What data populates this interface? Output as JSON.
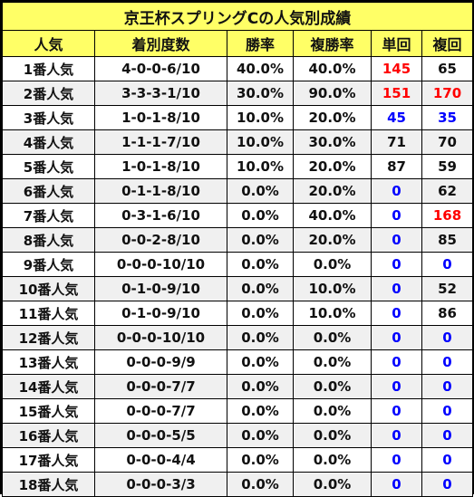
{
  "title": "京王杯スプリングCの人気別成績",
  "columns": [
    "人気",
    "着別度数",
    "勝率",
    "複勝率",
    "単回",
    "複回"
  ],
  "colors": {
    "header_bg": "#ffff66",
    "stripe_bg": "#f0f0f0",
    "high_return": "#ff0000",
    "low_return": "#0000ff",
    "normal_text": "#111111"
  },
  "rows": [
    {
      "pop": "1番人気",
      "record": "4-0-0-6/10",
      "win": "40.0%",
      "place": "40.0%",
      "tan": "145",
      "tan_color": "red",
      "fuku": "65",
      "fuku_color": "black"
    },
    {
      "pop": "2番人気",
      "record": "3-3-3-1/10",
      "win": "30.0%",
      "place": "90.0%",
      "tan": "151",
      "tan_color": "red",
      "fuku": "170",
      "fuku_color": "red"
    },
    {
      "pop": "3番人気",
      "record": "1-0-1-8/10",
      "win": "10.0%",
      "place": "20.0%",
      "tan": "45",
      "tan_color": "blue",
      "fuku": "35",
      "fuku_color": "blue"
    },
    {
      "pop": "4番人気",
      "record": "1-1-1-7/10",
      "win": "10.0%",
      "place": "30.0%",
      "tan": "71",
      "tan_color": "black",
      "fuku": "70",
      "fuku_color": "black"
    },
    {
      "pop": "5番人気",
      "record": "1-0-1-8/10",
      "win": "10.0%",
      "place": "20.0%",
      "tan": "87",
      "tan_color": "black",
      "fuku": "59",
      "fuku_color": "black"
    },
    {
      "pop": "6番人気",
      "record": "0-1-1-8/10",
      "win": "0.0%",
      "place": "20.0%",
      "tan": "0",
      "tan_color": "blue",
      "fuku": "62",
      "fuku_color": "black"
    },
    {
      "pop": "7番人気",
      "record": "0-3-1-6/10",
      "win": "0.0%",
      "place": "40.0%",
      "tan": "0",
      "tan_color": "blue",
      "fuku": "168",
      "fuku_color": "red"
    },
    {
      "pop": "8番人気",
      "record": "0-0-2-8/10",
      "win": "0.0%",
      "place": "20.0%",
      "tan": "0",
      "tan_color": "blue",
      "fuku": "85",
      "fuku_color": "black"
    },
    {
      "pop": "9番人気",
      "record": "0-0-0-10/10",
      "win": "0.0%",
      "place": "0.0%",
      "tan": "0",
      "tan_color": "blue",
      "fuku": "0",
      "fuku_color": "blue"
    },
    {
      "pop": "10番人気",
      "record": "0-1-0-9/10",
      "win": "0.0%",
      "place": "10.0%",
      "tan": "0",
      "tan_color": "blue",
      "fuku": "52",
      "fuku_color": "black"
    },
    {
      "pop": "11番人気",
      "record": "0-1-0-9/10",
      "win": "0.0%",
      "place": "10.0%",
      "tan": "0",
      "tan_color": "blue",
      "fuku": "86",
      "fuku_color": "black"
    },
    {
      "pop": "12番人気",
      "record": "0-0-0-10/10",
      "win": "0.0%",
      "place": "0.0%",
      "tan": "0",
      "tan_color": "blue",
      "fuku": "0",
      "fuku_color": "blue"
    },
    {
      "pop": "13番人気",
      "record": "0-0-0-9/9",
      "win": "0.0%",
      "place": "0.0%",
      "tan": "0",
      "tan_color": "blue",
      "fuku": "0",
      "fuku_color": "blue"
    },
    {
      "pop": "14番人気",
      "record": "0-0-0-7/7",
      "win": "0.0%",
      "place": "0.0%",
      "tan": "0",
      "tan_color": "blue",
      "fuku": "0",
      "fuku_color": "blue"
    },
    {
      "pop": "15番人気",
      "record": "0-0-0-7/7",
      "win": "0.0%",
      "place": "0.0%",
      "tan": "0",
      "tan_color": "blue",
      "fuku": "0",
      "fuku_color": "blue"
    },
    {
      "pop": "16番人気",
      "record": "0-0-0-5/5",
      "win": "0.0%",
      "place": "0.0%",
      "tan": "0",
      "tan_color": "blue",
      "fuku": "0",
      "fuku_color": "blue"
    },
    {
      "pop": "17番人気",
      "record": "0-0-0-4/4",
      "win": "0.0%",
      "place": "0.0%",
      "tan": "0",
      "tan_color": "blue",
      "fuku": "0",
      "fuku_color": "blue"
    },
    {
      "pop": "18番人気",
      "record": "0-0-0-3/3",
      "win": "0.0%",
      "place": "0.0%",
      "tan": "0",
      "tan_color": "blue",
      "fuku": "0",
      "fuku_color": "blue"
    }
  ]
}
